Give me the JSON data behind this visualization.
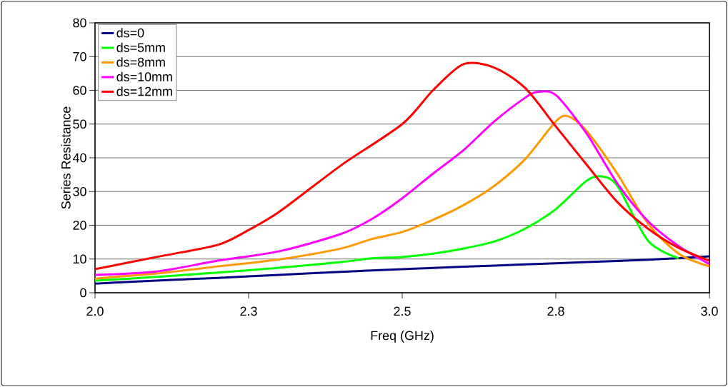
{
  "chart_data": {
    "type": "line",
    "xlabel": "Freq (GHz)",
    "ylabel": "Series Resistance",
    "xlim": [
      2.0,
      3.0
    ],
    "ylim": [
      0,
      80
    ],
    "xticks": [
      {
        "value": 2.0,
        "label": "2.0"
      },
      {
        "value": 2.25,
        "label": "2.3"
      },
      {
        "value": 2.5,
        "label": "2.5"
      },
      {
        "value": 2.75,
        "label": "2.8"
      },
      {
        "value": 3.0,
        "label": "3.0"
      }
    ],
    "yticks": [
      0,
      10,
      20,
      30,
      40,
      50,
      60,
      70,
      80
    ],
    "grid": "y",
    "legend": "top left",
    "marker": "none",
    "line_style": "solid",
    "series": [
      {
        "name": "ds=0",
        "color": "#000080",
        "x": [
          2.0,
          2.1,
          2.2,
          2.3,
          2.4,
          2.5,
          2.6,
          2.7,
          2.8,
          2.9,
          3.0
        ],
        "values": [
          2.7,
          3.6,
          4.4,
          5.3,
          6.2,
          7.0,
          7.7,
          8.4,
          9.1,
          9.8,
          10.8
        ]
      },
      {
        "name": "ds=5mm",
        "color": "#00ff00",
        "x": [
          2.0,
          2.1,
          2.2,
          2.3,
          2.4,
          2.45,
          2.5,
          2.55,
          2.6,
          2.65,
          2.7,
          2.75,
          2.8,
          2.824,
          2.85,
          2.9,
          2.95
        ],
        "values": [
          3.6,
          4.7,
          6.0,
          7.4,
          9.1,
          10.2,
          10.6,
          11.6,
          13.1,
          15.2,
          19.0,
          24.8,
          33.2,
          34.5,
          31.7,
          15.4,
          10.2
        ]
      },
      {
        "name": "ds=8mm",
        "color": "#ff9900",
        "x": [
          2.0,
          2.1,
          2.2,
          2.3,
          2.4,
          2.45,
          2.5,
          2.55,
          2.6,
          2.65,
          2.7,
          2.75,
          2.77,
          2.8,
          2.85,
          2.9,
          2.95,
          3.0
        ],
        "values": [
          4.2,
          5.7,
          7.8,
          9.9,
          13.1,
          15.9,
          18.0,
          21.6,
          26.0,
          31.7,
          39.6,
          50.8,
          52.3,
          48.0,
          35.3,
          20.5,
          11.6,
          7.8
        ]
      },
      {
        "name": "ds=10mm",
        "color": "#ff00ff",
        "x": [
          2.0,
          2.1,
          2.2,
          2.3,
          2.4,
          2.45,
          2.5,
          2.55,
          2.6,
          2.65,
          2.7,
          2.72,
          2.75,
          2.8,
          2.85,
          2.9,
          2.95,
          3.0
        ],
        "values": [
          5.3,
          6.3,
          9.5,
          12.3,
          17.4,
          21.8,
          28.0,
          35.3,
          42.3,
          50.8,
          57.8,
          59.5,
          58.6,
          47.2,
          32.4,
          21.2,
          13.8,
          8.5
        ]
      },
      {
        "name": "ds=12mm",
        "color": "#ff0000",
        "x": [
          2.0,
          2.1,
          2.2,
          2.25,
          2.3,
          2.4,
          2.5,
          2.55,
          2.6,
          2.65,
          2.7,
          2.75,
          2.8,
          2.85,
          2.9,
          2.95,
          3.0
        ],
        "values": [
          7.0,
          10.6,
          14.2,
          18.6,
          24.0,
          37.7,
          50.0,
          60.0,
          67.8,
          66.7,
          60.7,
          49.3,
          38.0,
          26.9,
          19.0,
          13.3,
          9.5
        ]
      }
    ]
  }
}
